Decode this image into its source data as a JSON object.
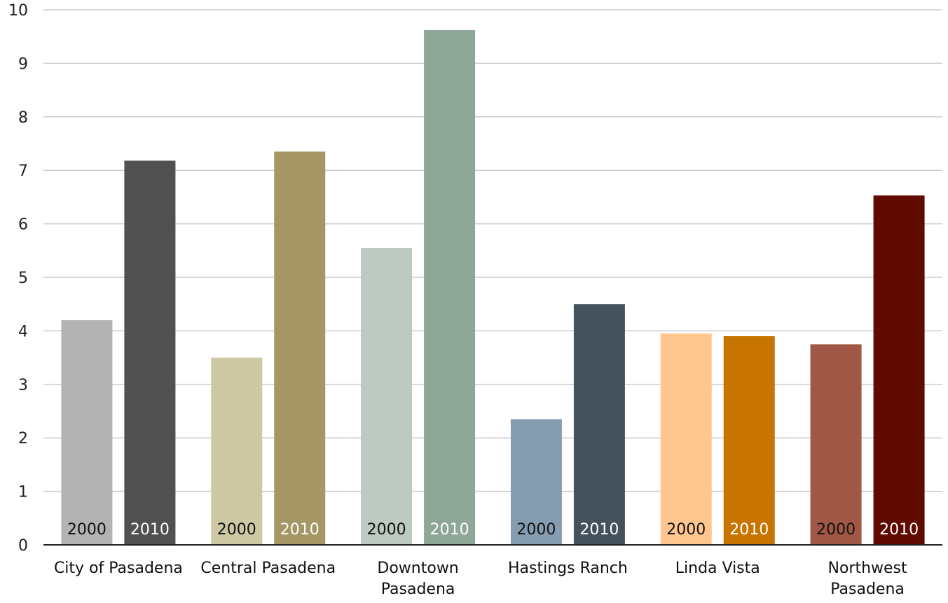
{
  "chart_data": {
    "type": "bar",
    "title": "",
    "xlabel": "",
    "ylabel": "",
    "ylim": [
      0,
      10
    ],
    "yticks": [
      "0",
      "1",
      "2",
      "3",
      "4",
      "5",
      "6",
      "7",
      "8",
      "9",
      "10"
    ],
    "grid": true,
    "legend": "none",
    "categories": [
      "City of Pasadena",
      "Central Pasadena",
      "Downtown Pasadena",
      "Hastings Ranch",
      "Linda Vista",
      "Northwest Pasadena"
    ],
    "series": [
      {
        "label": "2000",
        "values": [
          4.2,
          3.5,
          5.55,
          2.35,
          3.95,
          3.75
        ],
        "colors": [
          "#b3b3b3",
          "#cfc8a5",
          "#bccac2",
          "#869cb0",
          "#ffc78f",
          "#a05745"
        ],
        "label_color": "#111111"
      },
      {
        "label": "2010",
        "values": [
          7.18,
          7.35,
          9.62,
          4.5,
          3.9,
          6.53
        ],
        "colors": [
          "#515151",
          "#a59765",
          "#8ea798",
          "#43525d",
          "#c87400",
          "#610a00"
        ],
        "label_color": "#ffffff"
      }
    ],
    "axis_color": "#222222",
    "grid_color": "#cccccc"
  }
}
